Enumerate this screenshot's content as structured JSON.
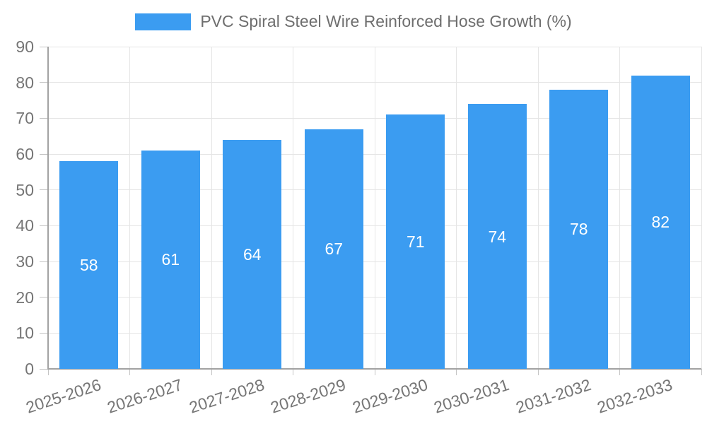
{
  "chart_data": {
    "type": "bar",
    "title": "PVC Spiral Steel Wire Reinforced Hose Growth (%)",
    "categories": [
      "2025-2026",
      "2026-2027",
      "2027-2028",
      "2028-2029",
      "2029-2030",
      "2030-2031",
      "2031-2032",
      "2032-2033"
    ],
    "values": [
      58,
      61,
      64,
      67,
      71,
      74,
      78,
      82
    ],
    "xlabel": "",
    "ylabel": "",
    "ylim": [
      0,
      90
    ],
    "yticks": [
      0,
      10,
      20,
      30,
      40,
      50,
      60,
      70,
      80,
      90
    ],
    "grid": true,
    "legend_position": "top",
    "x_label_rotation_deg": -18,
    "colors": {
      "bar": "#3B9CF1",
      "value_label": "#FFFFFF",
      "grid": "#E5E5E5",
      "axis": "#A2A2A2",
      "tick": "#C4C4C4",
      "tick_text": "#757575",
      "legend_text": "#6E6E6E"
    }
  }
}
